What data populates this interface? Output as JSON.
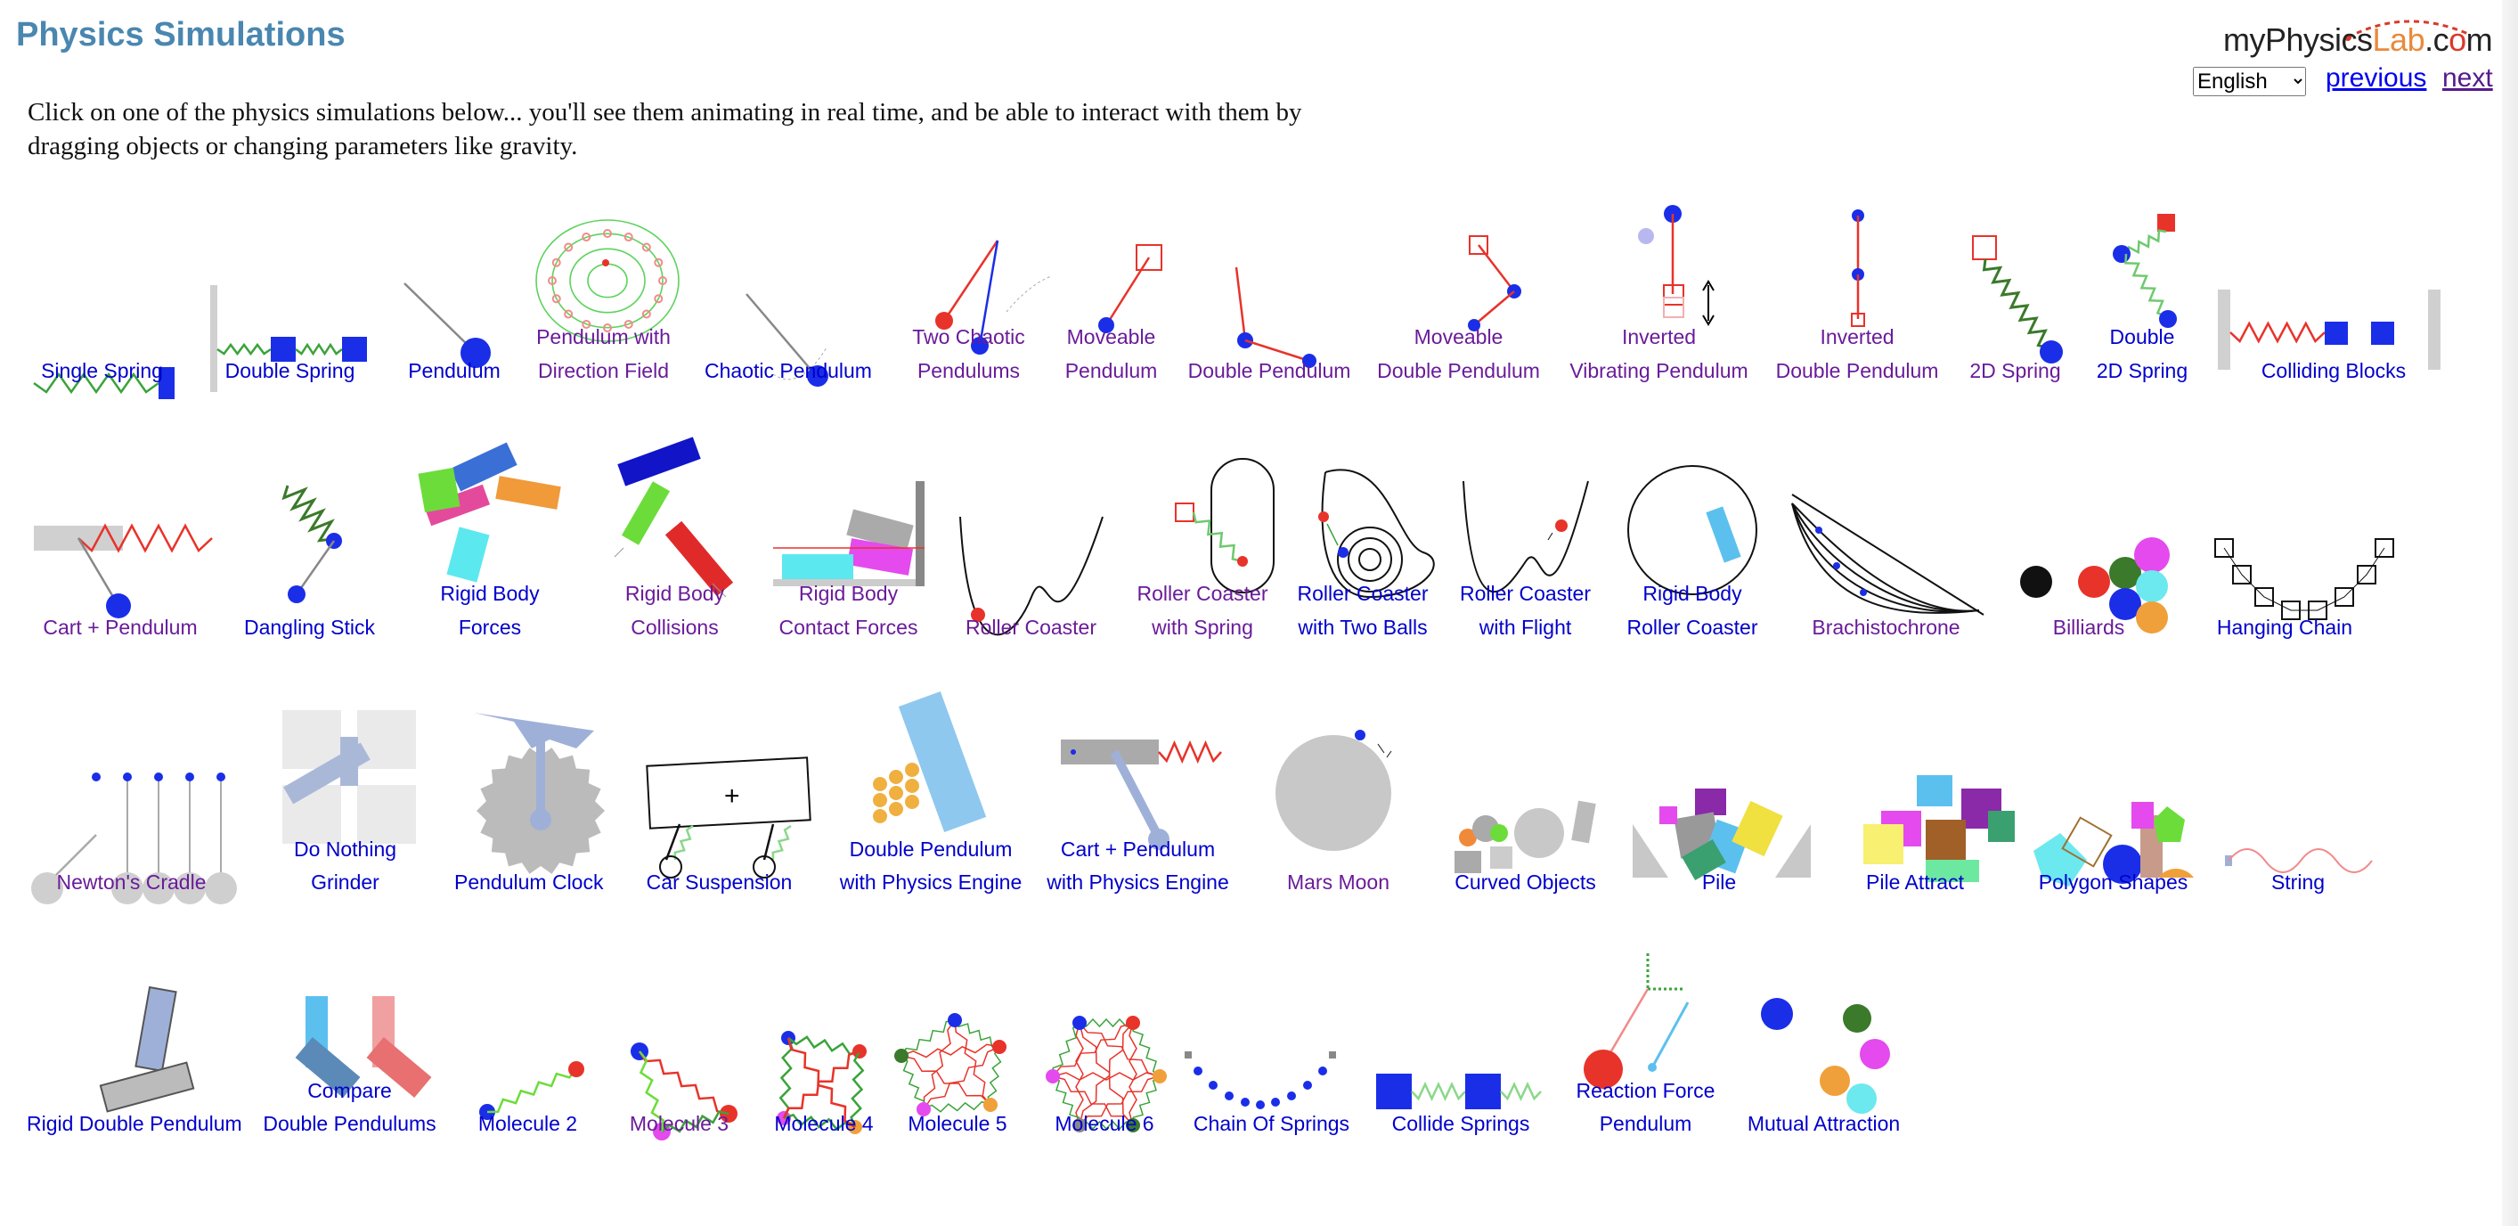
{
  "header": {
    "title": "Physics Simulations",
    "logo": {
      "part1": "my",
      "part2": "Physics",
      "part3": "Lab",
      "part4": ".c",
      "part5": "o",
      "part6": "m"
    },
    "language_selected": "English",
    "previous_label": "previous",
    "next_label": "next"
  },
  "intro": {
    "text": "Click on one of the physics simulations below... you'll see them animating in real time, and be able to interact with them by dragging objects or changing parameters like gravity."
  },
  "simulations": [
    {
      "line1": "",
      "line2": "Single Spring"
    },
    {
      "line1": "",
      "line2": "Double Spring"
    },
    {
      "line1": "",
      "line2": "Pendulum"
    },
    {
      "line1": "Pendulum with",
      "line2": "Direction Field"
    },
    {
      "line1": "",
      "line2": "Chaotic Pendulum"
    },
    {
      "line1": "Two Chaotic",
      "line2": "Pendulums"
    },
    {
      "line1": "Moveable",
      "line2": "Pendulum"
    },
    {
      "line1": "",
      "line2": "Double Pendulum"
    },
    {
      "line1": "Moveable",
      "line2": "Double Pendulum"
    },
    {
      "line1": "Inverted",
      "line2": "Vibrating Pendulum"
    },
    {
      "line1": "Inverted",
      "line2": "Double Pendulum"
    },
    {
      "line1": "",
      "line2": "2D Spring"
    },
    {
      "line1": "Double",
      "line2": "2D Spring"
    },
    {
      "line1": "",
      "line2": "Colliding Blocks"
    },
    {
      "line1": "",
      "line2": "Cart + Pendulum"
    },
    {
      "line1": "",
      "line2": "Dangling Stick"
    },
    {
      "line1": "Rigid Body",
      "line2": "Forces"
    },
    {
      "line1": "Rigid Body",
      "line2": "Collisions"
    },
    {
      "line1": "Rigid Body",
      "line2": "Contact Forces"
    },
    {
      "line1": "",
      "line2": "Roller Coaster"
    },
    {
      "line1": "Roller Coaster",
      "line2": "with Spring"
    },
    {
      "line1": "Roller Coaster",
      "line2": "with Two Balls"
    },
    {
      "line1": "Roller Coaster",
      "line2": "with Flight"
    },
    {
      "line1": "Rigid Body",
      "line2": "Roller Coaster"
    },
    {
      "line1": "",
      "line2": "Brachistochrone"
    },
    {
      "line1": "",
      "line2": "Billiards"
    },
    {
      "line1": "",
      "line2": "Hanging Chain"
    },
    {
      "line1": "",
      "line2": "Newton's Cradle"
    },
    {
      "line1": "Do Nothing",
      "line2": "Grinder"
    },
    {
      "line1": "",
      "line2": "Pendulum Clock"
    },
    {
      "line1": "",
      "line2": "Car Suspension"
    },
    {
      "line1": "Double Pendulum",
      "line2": "with Physics Engine"
    },
    {
      "line1": "Cart + Pendulum",
      "line2": "with Physics Engine"
    },
    {
      "line1": "",
      "line2": "Mars Moon"
    },
    {
      "line1": "",
      "line2": "Curved Objects"
    },
    {
      "line1": "",
      "line2": "Pile"
    },
    {
      "line1": "",
      "line2": "Pile Attract"
    },
    {
      "line1": "",
      "line2": "Polygon Shapes"
    },
    {
      "line1": "",
      "line2": "String"
    },
    {
      "line1": "",
      "line2": "Rigid Double Pendulum"
    },
    {
      "line1": "Compare",
      "line2": "Double Pendulums"
    },
    {
      "line1": "",
      "line2": "Molecule 2"
    },
    {
      "line1": "",
      "line2": "Molecule 3"
    },
    {
      "line1": "",
      "line2": "Molecule 4"
    },
    {
      "line1": "",
      "line2": "Molecule 5"
    },
    {
      "line1": "",
      "line2": "Molecule 6"
    },
    {
      "line1": "",
      "line2": "Chain Of Springs"
    },
    {
      "line1": "",
      "line2": "Collide Springs"
    },
    {
      "line1": "Reaction Force",
      "line2": "Pendulum"
    },
    {
      "line1": "",
      "line2": "Mutual Attraction"
    }
  ],
  "colors": {
    "title": "#4a87b0",
    "link": "#0000cc",
    "visited": "#6a1b9a",
    "blue": "#1a2ee8",
    "red": "#e8332a",
    "green": "#3aa33a"
  }
}
